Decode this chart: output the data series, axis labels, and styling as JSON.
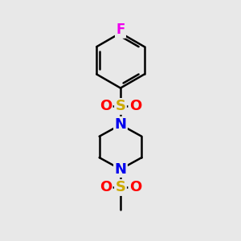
{
  "background_color": "#e8e8e8",
  "figure_size": [
    3.0,
    3.0
  ],
  "dpi": 100,
  "atom_colors": {
    "F": "#ee00ee",
    "S": "#ccaa00",
    "O": "#ff0000",
    "N": "#0000ee",
    "C": "#000000"
  },
  "bond_color": "#000000",
  "bond_width": 1.8,
  "font_sizes": {
    "F": 12,
    "S": 13,
    "O": 13,
    "N": 13
  }
}
